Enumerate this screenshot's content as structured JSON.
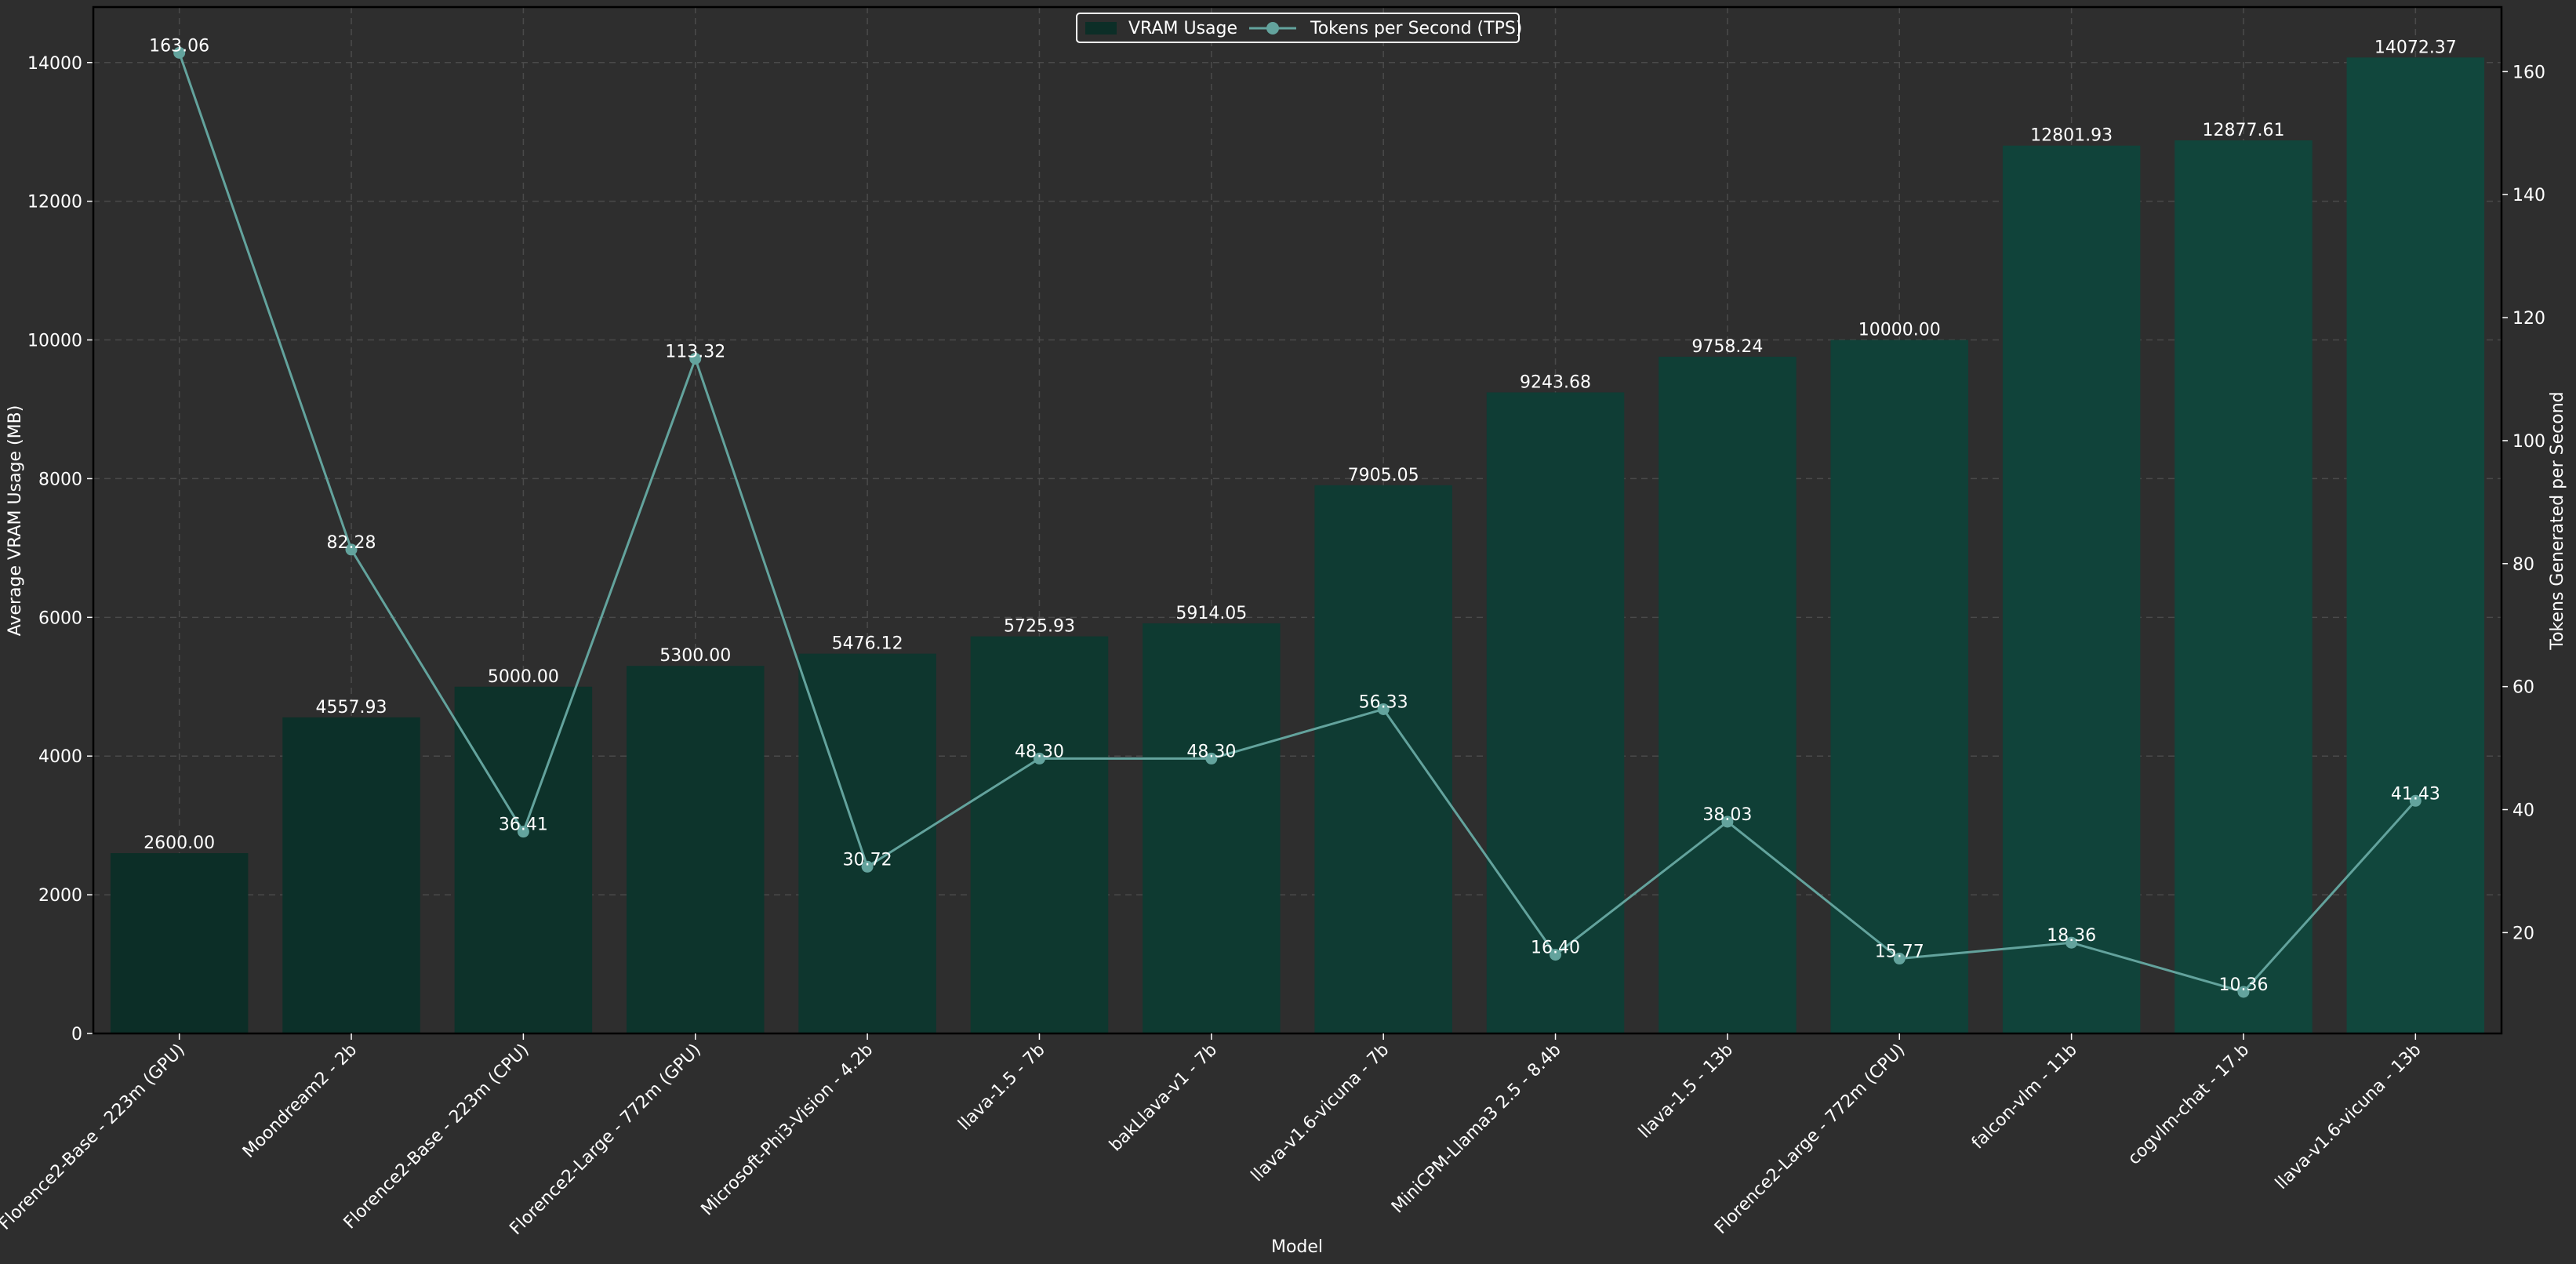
{
  "chart_data": {
    "type": "bar",
    "title": "",
    "xlabel": "Model",
    "ylabel": "Average VRAM Usage (MB)",
    "y2label": "Tokens Generated per Second",
    "ylim": [
      0,
      14800
    ],
    "y2lim": [
      3.6,
      170.5
    ],
    "yticks": [
      "0",
      "2000",
      "4000",
      "6000",
      "8000",
      "10000",
      "12000",
      "14000"
    ],
    "y2ticks": [
      "20",
      "40",
      "60",
      "80",
      "100",
      "120",
      "140",
      "160"
    ],
    "grid": true,
    "legend_position": "top-center",
    "categories": [
      "Florence2-Base - 223m (GPU)",
      "Moondream2 - 2b",
      "Florence2-Base - 223m (CPU)",
      "Florence2-Large - 772m (GPU)",
      "Microsoft-Phi3-Vision - 4.2b",
      "llava-1.5 - 7b",
      "bakLlava-v1 - 7b",
      "llava-v1.6-vicuna - 7b",
      "MiniCPM-Llama3 2.5 - 8.4b",
      "llava-1.5 - 13b",
      "Florence2-Large - 772m (CPU)",
      "falcon-vlm - 11b",
      "cogvlm-chat - 17.b",
      "llava-v1.6-vicuna - 13b"
    ],
    "series": [
      {
        "name": "VRAM Usage",
        "type": "bar",
        "axis": "left",
        "values": [
          2600.0,
          4557.93,
          5000.0,
          5300.0,
          5476.12,
          5725.93,
          5914.05,
          7905.05,
          9243.68,
          9758.24,
          10000.0,
          12801.93,
          12877.61,
          14072.37
        ],
        "labels": [
          "2600.00",
          "4557.93",
          "5000.00",
          "5300.00",
          "5476.12",
          "5725.93",
          "5914.05",
          "7905.05",
          "9243.68",
          "9758.24",
          "10000.00",
          "12801.93",
          "12877.61",
          "14072.37"
        ],
        "color_start": "#0c2e27",
        "color_end": "#11473d"
      },
      {
        "name": "Tokens per Second (TPS)",
        "type": "line",
        "axis": "right",
        "values": [
          163.06,
          82.28,
          36.41,
          113.32,
          30.72,
          48.3,
          48.3,
          56.33,
          16.4,
          38.03,
          15.77,
          18.36,
          10.36,
          41.43
        ],
        "labels": [
          "163.06",
          "82.28",
          "36.41",
          "113.32",
          "30.72",
          "48.30",
          "48.30",
          "56.33",
          "16.40",
          "38.03",
          "15.77",
          "18.36",
          "10.36",
          "41.43"
        ],
        "color": "#63a39d"
      }
    ],
    "colors": {
      "background": "#2e2e2e",
      "axes": "#000000",
      "grid": "#4a4a4a",
      "text": "#ffffff"
    }
  }
}
